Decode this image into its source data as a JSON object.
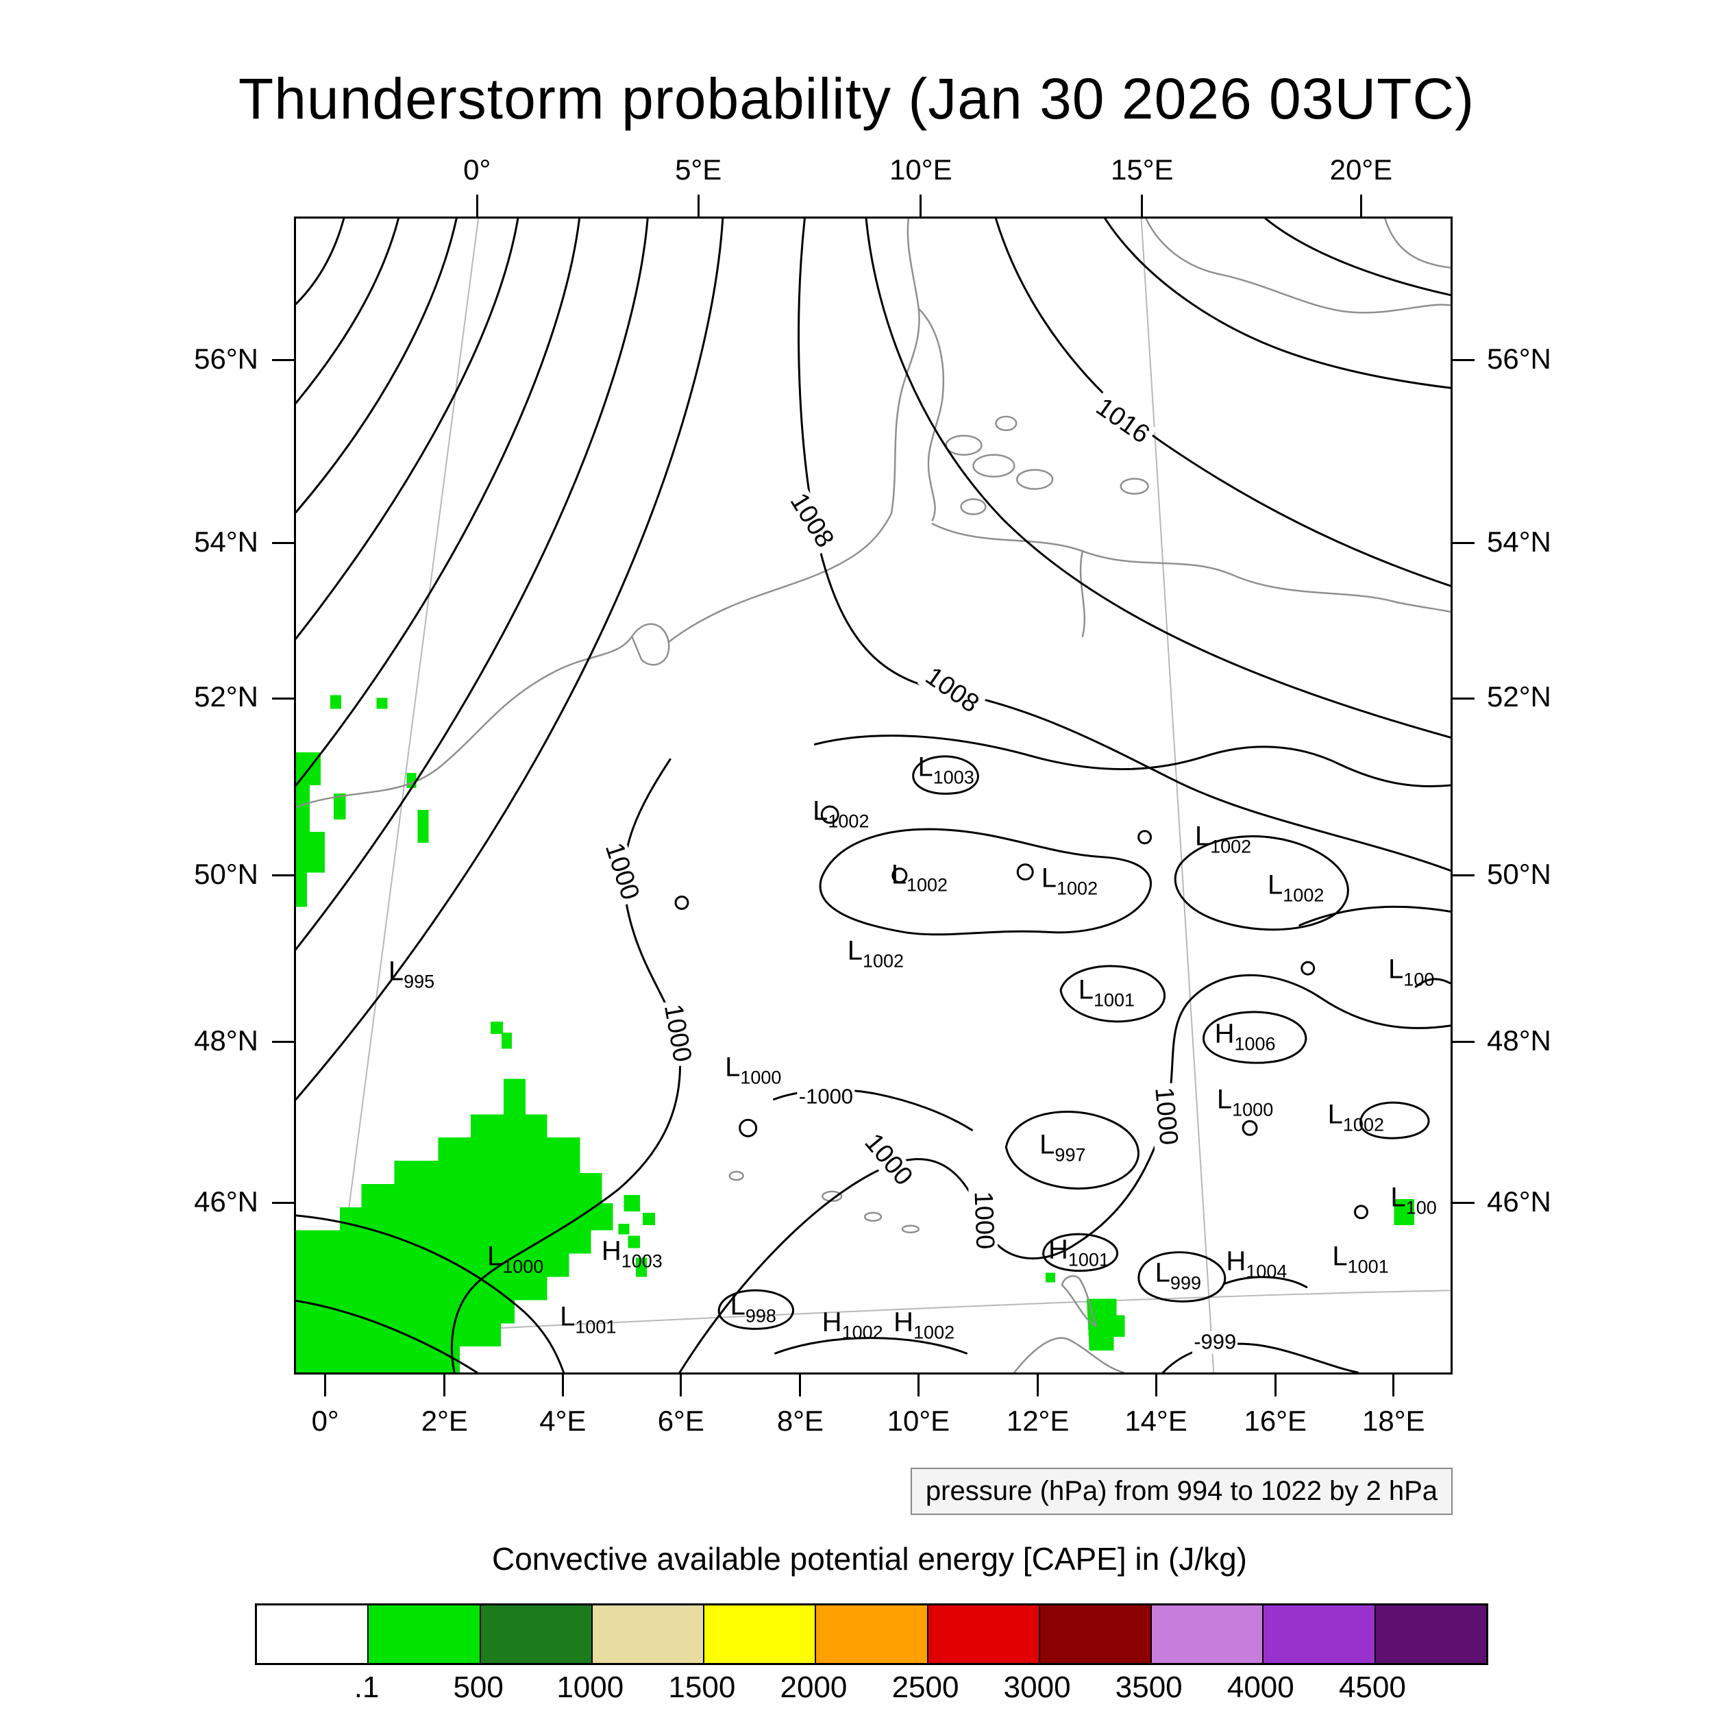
{
  "title": "Thunderstorm probability (Jan 30 2026 03UTC)",
  "pressure_caption": "pressure (hPa) from 994 to 1022 by 2 hPa",
  "legend": {
    "title": "Convective available potential energy [CAPE] in (J/kg)",
    "colors": [
      "#FFFFFF",
      "#00E400",
      "#1C7C1C",
      "#E8DCA0",
      "#FFFF00",
      "#FFA000",
      "#E00000",
      "#8B0000",
      "#C77DDB",
      "#9932CC",
      "#5E1070"
    ],
    "labels": [
      ".1",
      "500",
      "1000",
      "1500",
      "2000",
      "2500",
      "3000",
      "3500",
      "4000",
      "4500"
    ]
  },
  "axes": {
    "top": [
      {
        "label": "0°",
        "f": 0.158
      },
      {
        "label": "5°E",
        "f": 0.349
      },
      {
        "label": "10°E",
        "f": 0.541
      },
      {
        "label": "15°E",
        "f": 0.732
      },
      {
        "label": "20°E",
        "f": 0.921
      }
    ],
    "bottom": [
      {
        "label": "0°",
        "f": 0.027
      },
      {
        "label": "2°E",
        "f": 0.13
      },
      {
        "label": "4°E",
        "f": 0.232
      },
      {
        "label": "6°E",
        "f": 0.334
      },
      {
        "label": "8°E",
        "f": 0.437
      },
      {
        "label": "10°E",
        "f": 0.539
      },
      {
        "label": "12°E",
        "f": 0.642
      },
      {
        "label": "14°E",
        "f": 0.744
      },
      {
        "label": "16°E",
        "f": 0.847
      },
      {
        "label": "18°E",
        "f": 0.949
      }
    ],
    "left": [
      {
        "label": "56°N",
        "f": 0.124
      },
      {
        "label": "54°N",
        "f": 0.282
      },
      {
        "label": "52°N",
        "f": 0.416
      },
      {
        "label": "50°N",
        "f": 0.569
      },
      {
        "label": "48°N",
        "f": 0.713
      },
      {
        "label": "46°N",
        "f": 0.852
      }
    ],
    "right": [
      {
        "label": "56°N",
        "f": 0.124
      },
      {
        "label": "54°N",
        "f": 0.282
      },
      {
        "label": "52°N",
        "f": 0.416
      },
      {
        "label": "50°N",
        "f": 0.569
      },
      {
        "label": "48°N",
        "f": 0.713
      },
      {
        "label": "46°N",
        "f": 0.852
      }
    ]
  },
  "chart_data": {
    "type": "contour_map",
    "title": "Thunderstorm probability (Jan 30 2026 03UTC)",
    "valid_time": "Jan 30 2026 03UTC",
    "pressure_contours": {
      "units": "hPa",
      "from": 994,
      "to": 1022,
      "by": 2,
      "labeled_values": [
        1000,
        1008,
        1016
      ]
    },
    "cape_scale": {
      "units": "J/kg",
      "thresholds": [
        0.1,
        500,
        1000,
        1500,
        2000,
        2500,
        3000,
        3500,
        4000,
        4500
      ],
      "colors": [
        "#FFFFFF",
        "#00E400",
        "#1C7C1C",
        "#E8DCA0",
        "#FFFF00",
        "#FFA000",
        "#E00000",
        "#8B0000",
        "#C77DDB",
        "#9932CC",
        "#5E1070"
      ],
      "shading_note": "green cells = CAPE between 0.1 and 500 J/kg"
    },
    "lon_range_labels": [
      "0°",
      "20°E"
    ],
    "lat_range_labels": [
      "46°N",
      "56°N"
    ],
    "pressure_centers": [
      {
        "t": "L",
        "v": "995",
        "x": 0.1,
        "y": 0.655
      },
      {
        "t": "L",
        "v": "1003",
        "x": 0.563,
        "y": 0.478
      },
      {
        "t": "L",
        "v": "1002",
        "x": 0.472,
        "y": 0.516
      },
      {
        "t": "L",
        "v": "1002",
        "x": 0.54,
        "y": 0.571
      },
      {
        "t": "L",
        "v": "1002",
        "x": 0.67,
        "y": 0.574
      },
      {
        "t": "L",
        "v": "1002",
        "x": 0.803,
        "y": 0.538
      },
      {
        "t": "L",
        "v": "1002",
        "x": 0.866,
        "y": 0.58
      },
      {
        "t": "L",
        "v": "1002",
        "x": 0.502,
        "y": 0.637
      },
      {
        "t": "L",
        "v": "1001",
        "x": 0.702,
        "y": 0.671
      },
      {
        "t": "H",
        "v": "1006",
        "x": 0.822,
        "y": 0.709
      },
      {
        "t": "L",
        "v": "1000",
        "x": 0.396,
        "y": 0.738
      },
      {
        "t": "L",
        "v": "1000",
        "x": 0.822,
        "y": 0.766
      },
      {
        "t": "L",
        "v": "1002",
        "x": 0.918,
        "y": 0.779
      },
      {
        "t": "L",
        "v": "997",
        "x": 0.664,
        "y": 0.805
      },
      {
        "t": "L",
        "v": "100",
        "x": 0.966,
        "y": 0.653
      },
      {
        "t": "L",
        "v": "100",
        "x": 0.968,
        "y": 0.851
      },
      {
        "t": "H",
        "v": "1003",
        "x": 0.291,
        "y": 0.897
      },
      {
        "t": "L",
        "v": "1000",
        "x": 0.19,
        "y": 0.902
      },
      {
        "t": "H",
        "v": "1001",
        "x": 0.678,
        "y": 0.896
      },
      {
        "t": "L",
        "v": "999",
        "x": 0.764,
        "y": 0.916
      },
      {
        "t": "H",
        "v": "1004",
        "x": 0.832,
        "y": 0.906
      },
      {
        "t": "L",
        "v": "1001",
        "x": 0.922,
        "y": 0.902
      },
      {
        "t": "L",
        "v": "1001",
        "x": 0.253,
        "y": 0.954
      },
      {
        "t": "L",
        "v": "998",
        "x": 0.396,
        "y": 0.945
      },
      {
        "t": "H",
        "v": "1002",
        "x": 0.482,
        "y": 0.959
      },
      {
        "t": "H",
        "v": "1002",
        "x": 0.544,
        "y": 0.959
      }
    ],
    "contour_labels": [
      {
        "t": "1016",
        "x": 0.716,
        "y": 0.176,
        "r": 35,
        "small": false
      },
      {
        "t": "1008",
        "x": 0.446,
        "y": 0.262,
        "r": 58,
        "small": false
      },
      {
        "t": "1008",
        "x": 0.568,
        "y": 0.409,
        "r": 35,
        "small": false
      },
      {
        "t": "1000",
        "x": 0.282,
        "y": 0.566,
        "r": 72,
        "small": false
      },
      {
        "t": "1000",
        "x": 0.33,
        "y": 0.706,
        "r": 80,
        "small": false
      },
      {
        "t": "1000",
        "x": 0.513,
        "y": 0.816,
        "r": 50,
        "small": false
      },
      {
        "t": "1000",
        "x": 0.595,
        "y": 0.868,
        "r": 88,
        "small": false
      },
      {
        "t": "1000",
        "x": 0.753,
        "y": 0.778,
        "r": 85,
        "small": false
      },
      {
        "t": "-1000",
        "x": 0.459,
        "y": 0.761,
        "r": 0,
        "small": true
      },
      {
        "t": "-999",
        "x": 0.796,
        "y": 0.974,
        "r": 0,
        "small": true
      }
    ]
  }
}
